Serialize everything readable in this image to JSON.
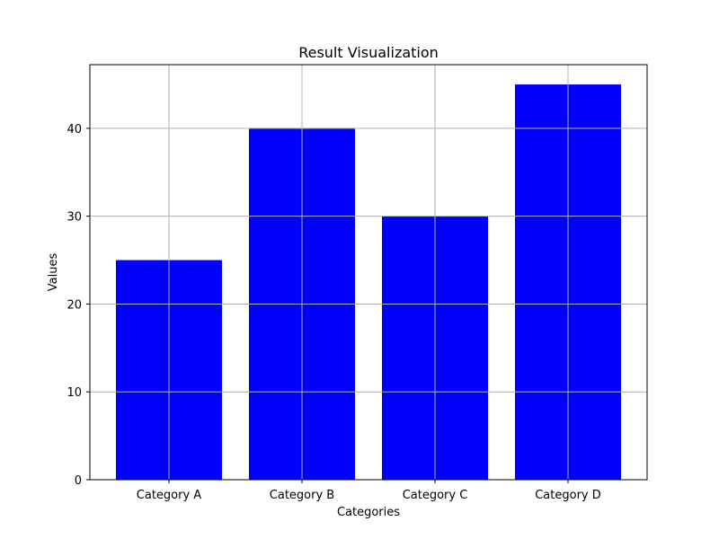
{
  "chart_data": {
    "type": "bar",
    "title": "Result Visualization",
    "xlabel": "Categories",
    "ylabel": "Values",
    "categories": [
      "Category A",
      "Category B",
      "Category C",
      "Category D"
    ],
    "values": [
      25,
      40,
      30,
      45
    ],
    "ylim": [
      0,
      47.25
    ],
    "yticks": [
      0,
      10,
      20,
      30,
      40
    ],
    "bar_color": "#0000ff",
    "grid": true,
    "legend": "none"
  }
}
